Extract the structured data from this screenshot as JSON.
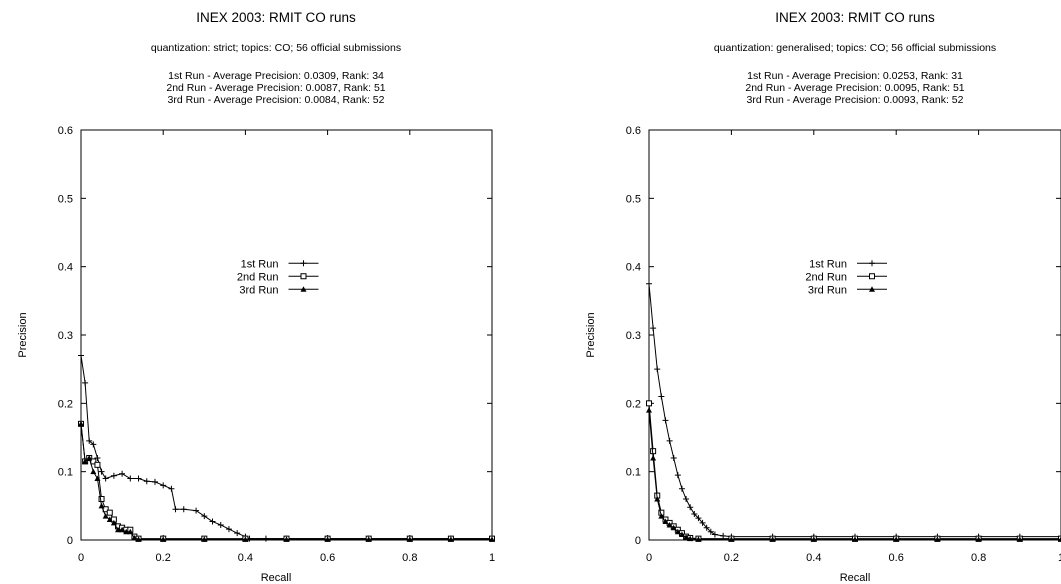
{
  "chart_data": [
    {
      "type": "line",
      "title": "INEX 2003: RMIT CO runs",
      "subtitle": "quantization: strict; topics: CO; 56 official submissions",
      "run_summaries": [
        "1st Run - Average Precision: 0.0309, Rank: 34",
        "2nd Run - Average Precision: 0.0087, Rank: 51",
        "3rd Run - Average Precision: 0.0084, Rank: 52"
      ],
      "xlabel": "Recall",
      "ylabel": "Precision",
      "xlim": [
        0,
        1
      ],
      "ylim": [
        0,
        0.6
      ],
      "xticks": [
        "0",
        "0.2",
        "0.4",
        "0.6",
        "0.8",
        "1"
      ],
      "yticks": [
        "0",
        "0.1",
        "0.2",
        "0.3",
        "0.4",
        "0.5",
        "0.6"
      ],
      "grid": false,
      "legend_position": "center",
      "series": [
        {
          "name": "1st Run",
          "marker": "plus",
          "x": [
            0.0,
            0.01,
            0.02,
            0.03,
            0.04,
            0.05,
            0.06,
            0.08,
            0.1,
            0.12,
            0.14,
            0.16,
            0.18,
            0.2,
            0.22,
            0.23,
            0.25,
            0.28,
            0.3,
            0.32,
            0.34,
            0.36,
            0.38,
            0.4,
            0.41,
            0.45,
            0.5,
            0.6,
            0.7,
            0.8,
            0.9,
            1.0
          ],
          "y": [
            0.27,
            0.23,
            0.145,
            0.14,
            0.12,
            0.1,
            0.09,
            0.094,
            0.097,
            0.09,
            0.09,
            0.086,
            0.085,
            0.08,
            0.075,
            0.045,
            0.045,
            0.043,
            0.035,
            0.027,
            0.022,
            0.016,
            0.01,
            0.005,
            0.002,
            0.002,
            0.002,
            0.002,
            0.002,
            0.002,
            0.002,
            0.002
          ]
        },
        {
          "name": "2nd Run",
          "marker": "square",
          "x": [
            0.0,
            0.01,
            0.02,
            0.03,
            0.04,
            0.05,
            0.06,
            0.07,
            0.08,
            0.09,
            0.1,
            0.11,
            0.12,
            0.13,
            0.14,
            0.2,
            0.3,
            0.4,
            0.5,
            0.6,
            0.7,
            0.8,
            0.9,
            1.0
          ],
          "y": [
            0.17,
            0.115,
            0.12,
            0.115,
            0.11,
            0.06,
            0.045,
            0.04,
            0.03,
            0.02,
            0.018,
            0.015,
            0.015,
            0.005,
            0.002,
            0.002,
            0.002,
            0.002,
            0.002,
            0.002,
            0.002,
            0.002,
            0.002,
            0.002
          ]
        },
        {
          "name": "3rd Run",
          "marker": "triangle",
          "x": [
            0.0,
            0.01,
            0.02,
            0.03,
            0.04,
            0.05,
            0.06,
            0.07,
            0.08,
            0.09,
            0.1,
            0.11,
            0.12,
            0.13,
            0.14,
            0.2,
            0.3,
            0.4,
            0.5,
            0.6,
            0.7,
            0.8,
            0.9,
            1.0
          ],
          "y": [
            0.17,
            0.115,
            0.12,
            0.1,
            0.09,
            0.05,
            0.035,
            0.03,
            0.025,
            0.015,
            0.015,
            0.012,
            0.012,
            0.003,
            0.001,
            0.001,
            0.001,
            0.001,
            0.001,
            0.001,
            0.001,
            0.001,
            0.001,
            0.001
          ]
        }
      ]
    },
    {
      "type": "line",
      "title": "INEX 2003: RMIT CO runs",
      "subtitle": "quantization: generalised; topics: CO; 56 official submissions",
      "run_summaries": [
        "1st Run - Average Precision: 0.0253, Rank: 31",
        "2nd Run - Average Precision: 0.0095, Rank: 51",
        "3rd Run - Average Precision: 0.0093, Rank: 52"
      ],
      "xlabel": "Recall",
      "ylabel": "Precision",
      "xlim": [
        0,
        1
      ],
      "ylim": [
        0,
        0.6
      ],
      "xticks": [
        "0",
        "0.2",
        "0.4",
        "0.6",
        "0.8",
        "1"
      ],
      "yticks": [
        "0",
        "0.1",
        "0.2",
        "0.3",
        "0.4",
        "0.5",
        "0.6"
      ],
      "grid": false,
      "legend_position": "center",
      "series": [
        {
          "name": "1st Run",
          "marker": "plus",
          "x": [
            0.0,
            0.01,
            0.02,
            0.03,
            0.04,
            0.05,
            0.06,
            0.07,
            0.08,
            0.09,
            0.1,
            0.11,
            0.12,
            0.13,
            0.14,
            0.15,
            0.16,
            0.18,
            0.2,
            0.3,
            0.4,
            0.5,
            0.6,
            0.7,
            0.8,
            0.9,
            1.0
          ],
          "y": [
            0.375,
            0.31,
            0.25,
            0.21,
            0.175,
            0.145,
            0.12,
            0.095,
            0.075,
            0.06,
            0.048,
            0.038,
            0.032,
            0.025,
            0.018,
            0.012,
            0.008,
            0.006,
            0.005,
            0.005,
            0.005,
            0.005,
            0.005,
            0.005,
            0.005,
            0.005,
            0.005
          ]
        },
        {
          "name": "2nd Run",
          "marker": "square",
          "x": [
            0.0,
            0.01,
            0.02,
            0.03,
            0.04,
            0.05,
            0.06,
            0.07,
            0.08,
            0.09,
            0.1,
            0.12,
            0.2,
            0.3,
            0.4,
            0.5,
            0.6,
            0.7,
            0.8,
            0.9,
            1.0
          ],
          "y": [
            0.2,
            0.13,
            0.065,
            0.04,
            0.03,
            0.025,
            0.02,
            0.015,
            0.01,
            0.005,
            0.003,
            0.002,
            0.002,
            0.002,
            0.002,
            0.002,
            0.002,
            0.002,
            0.002,
            0.002,
            0.002
          ]
        },
        {
          "name": "3rd Run",
          "marker": "triangle",
          "x": [
            0.0,
            0.01,
            0.02,
            0.03,
            0.04,
            0.05,
            0.06,
            0.07,
            0.08,
            0.09,
            0.1,
            0.12,
            0.2,
            0.3,
            0.4,
            0.5,
            0.6,
            0.7,
            0.8,
            0.9,
            1.0
          ],
          "y": [
            0.19,
            0.12,
            0.06,
            0.035,
            0.027,
            0.022,
            0.018,
            0.012,
            0.008,
            0.004,
            0.002,
            0.001,
            0.001,
            0.001,
            0.001,
            0.001,
            0.001,
            0.001,
            0.001,
            0.001,
            0.001
          ]
        }
      ]
    }
  ]
}
